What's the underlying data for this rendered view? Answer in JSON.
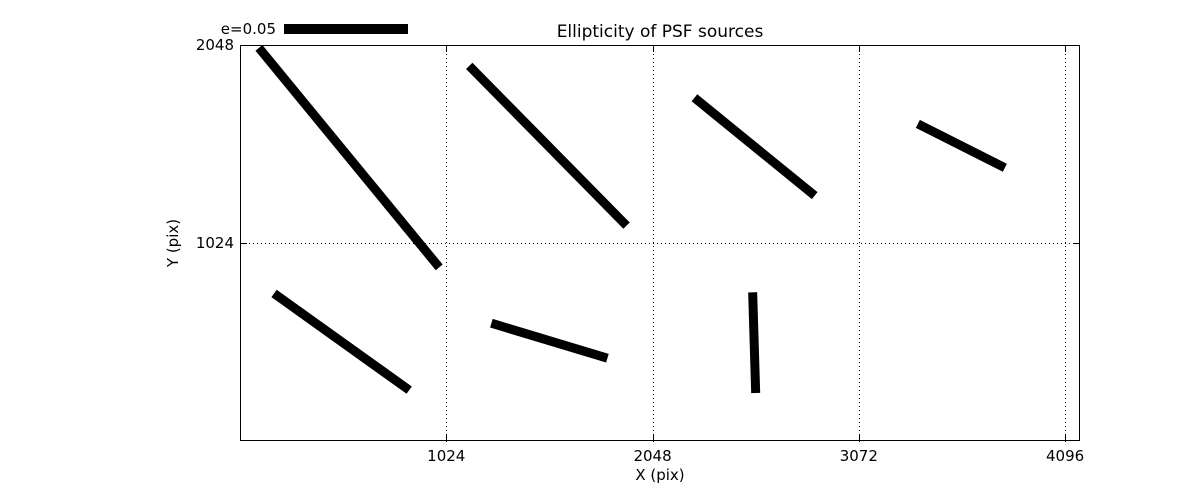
{
  "chart_data": {
    "type": "whisker-segments",
    "title": "Ellipticity of PSF sources",
    "xlabel": "X (pix)",
    "ylabel": "Y (pix)",
    "xlim": [
      0,
      4170
    ],
    "ylim": [
      0,
      2048
    ],
    "xticks": [
      1024,
      2048,
      3072,
      4096
    ],
    "yticks": [
      1024,
      2048
    ],
    "grid": "dotted",
    "legend": {
      "label": "e=0.05",
      "position": "top-left"
    },
    "line_color": "#000000",
    "line_width": 9,
    "segments": [
      {
        "x1": 94,
        "y1": 2033,
        "x2": 989,
        "y2": 898
      },
      {
        "x1": 1138,
        "y1": 1940,
        "x2": 1919,
        "y2": 1114
      },
      {
        "x1": 2256,
        "y1": 1775,
        "x2": 2853,
        "y2": 1269
      },
      {
        "x1": 3365,
        "y1": 1640,
        "x2": 3797,
        "y2": 1413
      },
      {
        "x1": 169,
        "y1": 763,
        "x2": 840,
        "y2": 263
      },
      {
        "x1": 1248,
        "y1": 609,
        "x2": 1824,
        "y2": 428
      },
      {
        "x1": 2545,
        "y1": 769,
        "x2": 2560,
        "y2": 248
      }
    ]
  }
}
